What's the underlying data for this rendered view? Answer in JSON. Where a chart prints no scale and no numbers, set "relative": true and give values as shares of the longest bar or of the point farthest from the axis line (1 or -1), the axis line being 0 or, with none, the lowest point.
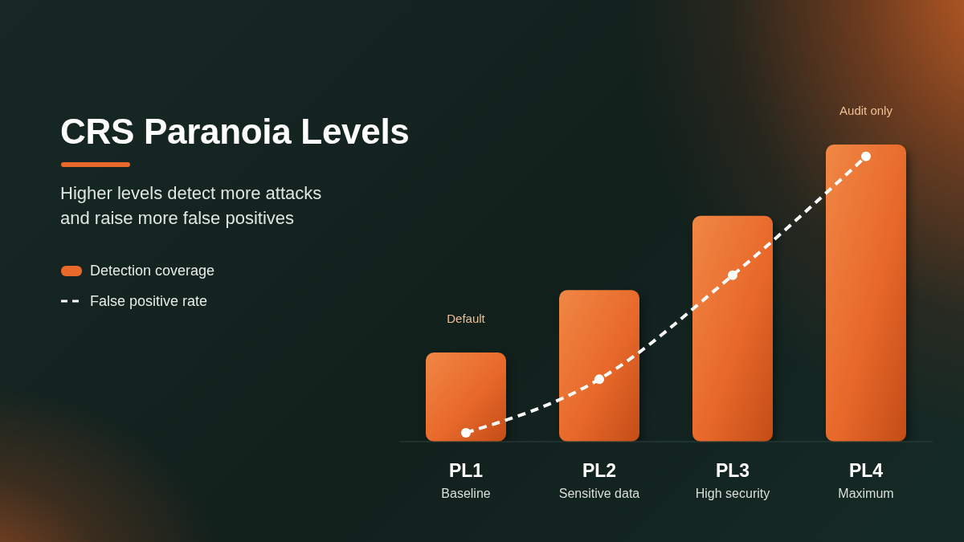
{
  "chart_data": {
    "type": "bar",
    "title": "CRS Paranoia Levels",
    "subtitle": "Higher levels detect more attacks and raise more false positives",
    "categories": [
      "PL1\nBaseline",
      "PL2\nSensitive data",
      "PL3\nHigh security",
      "PL4\nMaximum"
    ],
    "relative": true,
    "tick_labels": "x",
    "series": [
      {
        "name": "Detection coverage",
        "color": "#e8692a",
        "values": [
          0.3,
          0.51,
          0.76,
          1
        ]
      },
      {
        "name": "False positive rate",
        "type": "line",
        "color": "#ffffff",
        "values": [
          0.03,
          0.21,
          0.56,
          0.96
        ]
      }
    ],
    "marker": "circle",
    "line_style": "dashed",
    "annotations": [
      {
        "text": "Default",
        "x": "PL1\nBaseline",
        "y": 0.3
      },
      {
        "text": "Audit only",
        "x": "PL4\nMaximum",
        "y": 1
      }
    ],
    "legend": "left"
  }
}
